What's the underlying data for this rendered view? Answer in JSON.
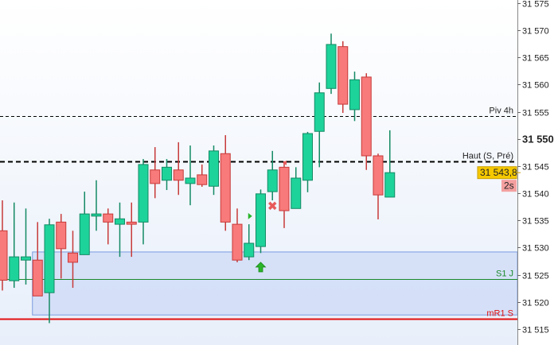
{
  "chart_data": {
    "type": "candlestick",
    "title": "",
    "xlabel": "",
    "ylabel": "",
    "ylim": [
      31514,
      31576
    ],
    "y_ticks": [
      {
        "value": 31575,
        "label": "31 575"
      },
      {
        "value": 31570,
        "label": "31 570"
      },
      {
        "value": 31565,
        "label": "31 565"
      },
      {
        "value": 31560,
        "label": "31 560"
      },
      {
        "value": 31555,
        "label": "31 555"
      },
      {
        "value": 31550,
        "label": "31 550",
        "bold": true
      },
      {
        "value": 31545,
        "label": "31 545"
      },
      {
        "value": 31540,
        "label": "31 540"
      },
      {
        "value": 31535,
        "label": "31 535"
      },
      {
        "value": 31530,
        "label": "31 530"
      },
      {
        "value": 31525,
        "label": "31 525"
      },
      {
        "value": 31520,
        "label": "31 520"
      },
      {
        "value": 31515,
        "label": "31 515"
      }
    ],
    "grid": false,
    "colors": {
      "up": "#1ed39a",
      "up_border": "#148a64",
      "down": "#f87a7a",
      "down_border": "#c73a3a",
      "background_top": "#ffffff",
      "background_bottom": "#e8effa"
    },
    "candles": [
      {
        "o": 31533.1,
        "h": 31538.7,
        "l": 31522.1,
        "c": 31524.0
      },
      {
        "o": 31523.9,
        "h": 31538.3,
        "l": 31522.6,
        "c": 31528.3
      },
      {
        "o": 31527.7,
        "h": 31537.2,
        "l": 31523.2,
        "c": 31528.3
      },
      {
        "o": 31527.7,
        "h": 31534.7,
        "l": 31521.1,
        "c": 31521.1
      },
      {
        "o": 31521.7,
        "h": 31535.3,
        "l": 31516.1,
        "c": 31534.2
      },
      {
        "o": 31534.7,
        "h": 31536.2,
        "l": 31524.3,
        "c": 31529.8
      },
      {
        "o": 31529.0,
        "h": 31533.1,
        "l": 31522.6,
        "c": 31527.3
      },
      {
        "o": 31528.7,
        "h": 31540.3,
        "l": 31528.7,
        "c": 31536.2
      },
      {
        "o": 31535.8,
        "h": 31542.4,
        "l": 31533.1,
        "c": 31536.2
      },
      {
        "o": 31536.2,
        "h": 31537.2,
        "l": 31530.6,
        "c": 31534.7
      },
      {
        "o": 31534.3,
        "h": 31538.3,
        "l": 31528.3,
        "c": 31535.3
      },
      {
        "o": 31534.7,
        "h": 31538.3,
        "l": 31528.3,
        "c": 31534.3
      },
      {
        "o": 31534.7,
        "h": 31546.3,
        "l": 31530.6,
        "c": 31545.3
      },
      {
        "o": 31544.3,
        "h": 31548.5,
        "l": 31539.1,
        "c": 31541.8
      },
      {
        "o": 31542.4,
        "h": 31546.3,
        "l": 31540.6,
        "c": 31544.8
      },
      {
        "o": 31544.3,
        "h": 31549.4,
        "l": 31539.7,
        "c": 31542.4
      },
      {
        "o": 31541.8,
        "h": 31548.8,
        "l": 31537.8,
        "c": 31542.8
      },
      {
        "o": 31543.4,
        "h": 31545.3,
        "l": 31541.2,
        "c": 31541.6
      },
      {
        "o": 31541.3,
        "h": 31548.8,
        "l": 31539.7,
        "c": 31547.8
      },
      {
        "o": 31547.3,
        "h": 31550.7,
        "l": 31533.1,
        "c": 31534.7
      },
      {
        "o": 31534.3,
        "h": 31537.2,
        "l": 31527.3,
        "c": 31527.7
      },
      {
        "o": 31528.3,
        "h": 31534.3,
        "l": 31527.7,
        "c": 31530.8
      },
      {
        "o": 31530.2,
        "h": 31540.7,
        "l": 31529.0,
        "c": 31539.9
      },
      {
        "o": 31540.3,
        "h": 31547.8,
        "l": 31538.7,
        "c": 31544.3
      },
      {
        "o": 31544.8,
        "h": 31545.9,
        "l": 31533.6,
        "c": 31536.8
      },
      {
        "o": 31537.2,
        "h": 31544.8,
        "l": 31537.2,
        "c": 31542.8
      },
      {
        "o": 31542.4,
        "h": 31551.3,
        "l": 31540.2,
        "c": 31551.0
      },
      {
        "o": 31551.4,
        "h": 31560.4,
        "l": 31544.8,
        "c": 31558.5
      },
      {
        "o": 31559.3,
        "h": 31569.4,
        "l": 31558.3,
        "c": 31567.4
      },
      {
        "o": 31567.0,
        "h": 31568.0,
        "l": 31554.8,
        "c": 31556.4
      },
      {
        "o": 31555.4,
        "h": 31562.4,
        "l": 31553.3,
        "c": 31560.9
      },
      {
        "o": 31561.4,
        "h": 31562.1,
        "l": 31544.3,
        "c": 31546.9
      },
      {
        "o": 31546.9,
        "h": 31547.3,
        "l": 31535.2,
        "c": 31539.7
      },
      {
        "o": 31539.3,
        "h": 31551.6,
        "l": 31539.3,
        "c": 31543.8
      }
    ],
    "levels": [
      {
        "label": "Piv 4h",
        "value": 31554.2,
        "color": "#000000",
        "style": "dashed-thin"
      },
      {
        "label": "Haut (S, Pré)",
        "value": 31545.9,
        "color": "#000000",
        "style": "dashed-thick"
      },
      {
        "label": "S1 J",
        "value": 31524.2,
        "color": "#1a8a2a",
        "style": "solid"
      },
      {
        "label": "mR1 S",
        "value": 31516.9,
        "color": "#e01010",
        "style": "solid-thick"
      }
    ],
    "zone": {
      "from_candle": 3,
      "top": 31529.2,
      "bottom": 31517.6,
      "fill": "#cfdcf8",
      "border": "#7a9be0"
    },
    "markers": [
      {
        "type": "triangle-right",
        "candle": 21,
        "value": 31535.8,
        "color": "#2bb52b"
      },
      {
        "type": "cross",
        "candle": 23,
        "value": 31537.7,
        "color": "#e85a5a"
      },
      {
        "type": "triangle-left",
        "candle": 24,
        "value": 31545.6,
        "color": "#e85a5a"
      },
      {
        "type": "arrow-up",
        "candle": 22,
        "value": 31527.3,
        "color": "#2bb52b"
      }
    ],
    "current_price": {
      "value": 31543.8,
      "label": "31 543,8",
      "color": "#f5c800"
    },
    "countdown": {
      "label": "2s",
      "color": "#f4a0a0"
    }
  }
}
